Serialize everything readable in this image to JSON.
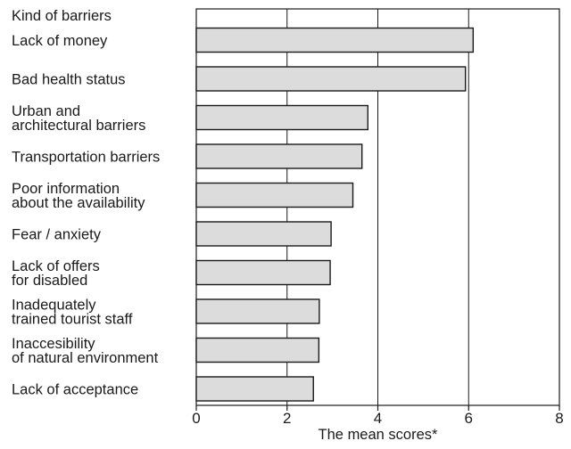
{
  "chart_data": {
    "type": "bar",
    "orientation": "horizontal",
    "category_header": "Kind of barriers",
    "categories": [
      [
        "Lack of money"
      ],
      [
        "Bad health status"
      ],
      [
        "Urban and",
        "architectural barriers"
      ],
      [
        "Transportation barriers"
      ],
      [
        "Poor information",
        "about the availability"
      ],
      [
        "Fear / anxiety"
      ],
      [
        "Lack of offers",
        "for disabled"
      ],
      [
        "Inadequately",
        "trained tourist staff"
      ],
      [
        "Inaccesibility",
        "of natural environment"
      ],
      [
        "Lack of acceptance"
      ]
    ],
    "values": [
      6.1,
      5.93,
      3.78,
      3.65,
      3.45,
      2.97,
      2.95,
      2.71,
      2.7,
      2.58
    ],
    "xlabel": "The mean scores*",
    "xlim": [
      0,
      8
    ],
    "xticks": [
      "0",
      "2",
      "4",
      "6",
      "8"
    ],
    "grid": "vertical",
    "bar_color": "#dcdcdc",
    "bar_stroke": "#1a1a1a"
  }
}
